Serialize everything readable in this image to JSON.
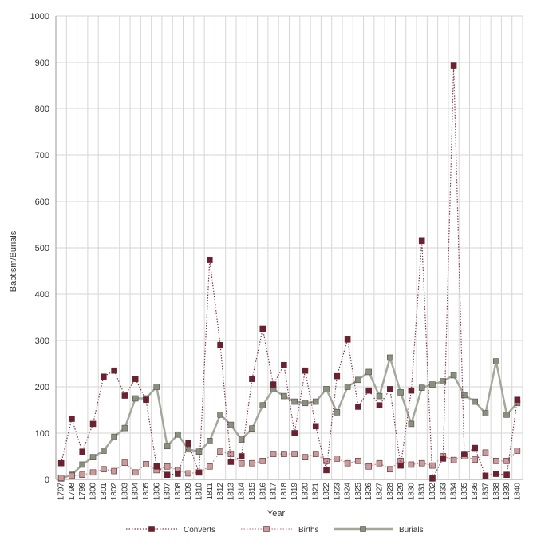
{
  "chart_data": {
    "type": "line",
    "title": "",
    "xlabel": "Year",
    "ylabel": "Baptism/Burials",
    "ylim": [
      0,
      1000
    ],
    "yticks": [
      0,
      100,
      200,
      300,
      400,
      500,
      600,
      700,
      800,
      900,
      1000
    ],
    "grid": true,
    "legend_position": "bottom",
    "categories": [
      "1797",
      "1798",
      "1799",
      "1800",
      "1801",
      "1802",
      "1803",
      "1804",
      "1805",
      "1806",
      "1807",
      "1808",
      "1809",
      "1810",
      "1811",
      "1812",
      "1813",
      "1814",
      "1815",
      "1816",
      "1817",
      "1818",
      "1819",
      "1820",
      "1821",
      "1822",
      "1823",
      "1824",
      "1825",
      "1826",
      "1827",
      "1828",
      "1829",
      "1830",
      "1831",
      "1832",
      "1833",
      "1834",
      "1835",
      "1836",
      "1837",
      "1838",
      "1839",
      "1840"
    ],
    "series": [
      {
        "name": "Converts",
        "style": "dotted-with-markers",
        "line_color": "#8a3a4a",
        "marker_color": "#6e1f30",
        "values": [
          35,
          131,
          60,
          120,
          222,
          235,
          181,
          217,
          172,
          28,
          10,
          12,
          78,
          15,
          474,
          290,
          38,
          50,
          217,
          325,
          205,
          247,
          100,
          235,
          115,
          20,
          223,
          302,
          157,
          192,
          160,
          195,
          30,
          192,
          515,
          2,
          45,
          893,
          55,
          68,
          8,
          12,
          10,
          172
        ]
      },
      {
        "name": "Births",
        "style": "dotted-with-markers",
        "line_color": "#c48a8a",
        "marker_color": "#c99b9b",
        "values": [
          3,
          8,
          10,
          15,
          22,
          18,
          36,
          15,
          33,
          20,
          28,
          20,
          13,
          15,
          28,
          60,
          55,
          35,
          35,
          40,
          55,
          55,
          55,
          48,
          55,
          40,
          45,
          35,
          40,
          28,
          35,
          22,
          40,
          32,
          35,
          30,
          50,
          42,
          50,
          43,
          58,
          40,
          40,
          62
        ]
      },
      {
        "name": "Burials",
        "style": "solid-with-markers",
        "line_color": "#a3a89a",
        "marker_color": "#8a8f80",
        "values": [
          2,
          10,
          32,
          48,
          62,
          92,
          111,
          175,
          175,
          200,
          72,
          97,
          65,
          60,
          83,
          140,
          118,
          86,
          110,
          160,
          195,
          180,
          168,
          165,
          168,
          195,
          145,
          200,
          215,
          232,
          180,
          263,
          188,
          120,
          198,
          205,
          212,
          225,
          182,
          168,
          143,
          255,
          140,
          165
        ]
      }
    ]
  }
}
